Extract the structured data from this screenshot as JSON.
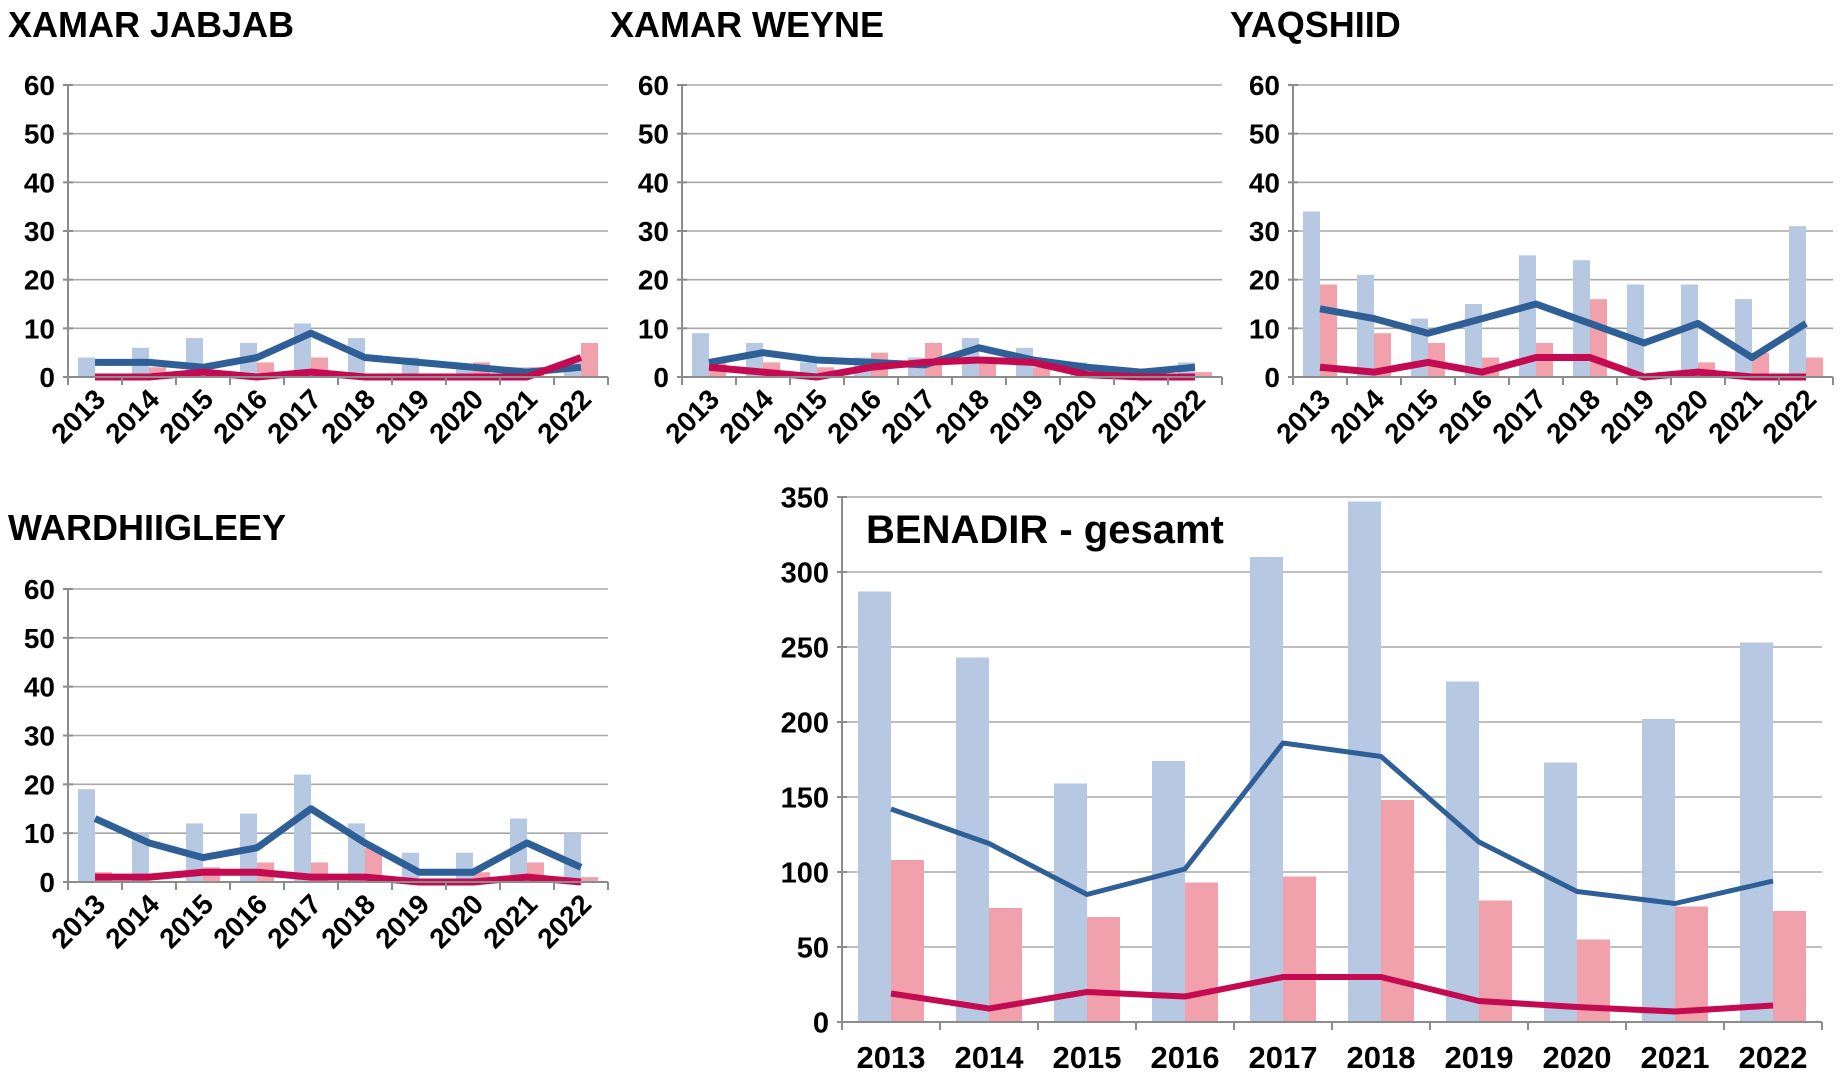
{
  "page": {
    "background": "#ffffff"
  },
  "colors": {
    "bar_blue": "#b6c8e2",
    "bar_pink": "#f0a1ac",
    "line_blue": "#2e5f96",
    "line_red": "#c40a50",
    "gridline": "#a8a8a8",
    "axis": "#8c8c8c",
    "text": "#000000"
  },
  "chart_data": [
    {
      "type": "bar",
      "title": "XAMAR JABJAB",
      "categories": [
        "2013",
        "2014",
        "2015",
        "2016",
        "2017",
        "2018",
        "2019",
        "2020",
        "2021",
        "2022"
      ],
      "ylim": [
        0,
        60
      ],
      "yticks": [
        0,
        10,
        20,
        30,
        40,
        50,
        60
      ],
      "grid": true,
      "legend": "none",
      "x_label_rotation": 45,
      "series": [
        {
          "name": "blue_bars",
          "type": "bar",
          "color": "#b6c8e2",
          "values": [
            4,
            6,
            8,
            7,
            11,
            8,
            4,
            2,
            2,
            3
          ]
        },
        {
          "name": "pink_bars",
          "type": "bar",
          "color": "#f0a1ac",
          "values": [
            0,
            2,
            0,
            3,
            4,
            0,
            0,
            3,
            2,
            7
          ]
        },
        {
          "name": "blue_line",
          "type": "line",
          "color": "#2e5f96",
          "values": [
            3,
            3,
            2,
            4,
            9,
            4,
            3,
            2,
            1,
            2
          ]
        },
        {
          "name": "red_line",
          "type": "line",
          "color": "#c40a50",
          "values": [
            0,
            0,
            1,
            0,
            1,
            0,
            0,
            0,
            0,
            4
          ]
        }
      ]
    },
    {
      "type": "bar",
      "title": "XAMAR WEYNE",
      "categories": [
        "2013",
        "2014",
        "2015",
        "2016",
        "2017",
        "2018",
        "2019",
        "2020",
        "2021",
        "2022"
      ],
      "ylim": [
        0,
        60
      ],
      "yticks": [
        0,
        10,
        20,
        30,
        40,
        50,
        60
      ],
      "grid": true,
      "legend": "none",
      "x_label_rotation": 45,
      "series": [
        {
          "name": "blue_bars",
          "type": "bar",
          "color": "#b6c8e2",
          "values": [
            9,
            7,
            3,
            4,
            4,
            8,
            6,
            3,
            1,
            3
          ]
        },
        {
          "name": "pink_bars",
          "type": "bar",
          "color": "#f0a1ac",
          "values": [
            3,
            3,
            2,
            5,
            7,
            3,
            2,
            2,
            0,
            1
          ]
        },
        {
          "name": "blue_line",
          "type": "line",
          "color": "#2e5f96",
          "values": [
            3,
            5,
            3.5,
            3,
            2.5,
            6,
            3.5,
            2,
            1,
            2
          ]
        },
        {
          "name": "red_line",
          "type": "line",
          "color": "#c40a50",
          "values": [
            2,
            1,
            0,
            2,
            3,
            3.5,
            3,
            0.5,
            0,
            0
          ]
        }
      ]
    },
    {
      "type": "bar",
      "title": "YAQSHIID",
      "categories": [
        "2013",
        "2014",
        "2015",
        "2016",
        "2017",
        "2018",
        "2019",
        "2020",
        "2021",
        "2022"
      ],
      "ylim": [
        0,
        60
      ],
      "yticks": [
        0,
        10,
        20,
        30,
        40,
        50,
        60
      ],
      "grid": true,
      "legend": "none",
      "x_label_rotation": 45,
      "series": [
        {
          "name": "blue_bars",
          "type": "bar",
          "color": "#b6c8e2",
          "values": [
            34,
            21,
            12,
            15,
            25,
            24,
            19,
            19,
            16,
            31
          ]
        },
        {
          "name": "pink_bars",
          "type": "bar",
          "color": "#f0a1ac",
          "values": [
            19,
            9,
            7,
            4,
            7,
            16,
            0,
            3,
            5,
            4
          ]
        },
        {
          "name": "blue_line",
          "type": "line",
          "color": "#2e5f96",
          "values": [
            14,
            12,
            9,
            12,
            15,
            11,
            7,
            11,
            4,
            11
          ]
        },
        {
          "name": "red_line",
          "type": "line",
          "color": "#c40a50",
          "values": [
            2,
            1,
            3,
            1,
            4,
            4,
            0,
            1,
            0,
            0
          ]
        }
      ]
    },
    {
      "type": "bar",
      "title": "WARDHIIGLEEY",
      "categories": [
        "2013",
        "2014",
        "2015",
        "2016",
        "2017",
        "2018",
        "2019",
        "2020",
        "2021",
        "2022"
      ],
      "ylim": [
        0,
        60
      ],
      "yticks": [
        0,
        10,
        20,
        30,
        40,
        50,
        60
      ],
      "grid": true,
      "legend": "none",
      "x_label_rotation": 45,
      "series": [
        {
          "name": "blue_bars",
          "type": "bar",
          "color": "#b6c8e2",
          "values": [
            19,
            10,
            12,
            14,
            22,
            12,
            6,
            6,
            13,
            10
          ]
        },
        {
          "name": "pink_bars",
          "type": "bar",
          "color": "#f0a1ac",
          "values": [
            2,
            0,
            3,
            4,
            4,
            7,
            0,
            2,
            4,
            1
          ]
        },
        {
          "name": "blue_line",
          "type": "line",
          "color": "#2e5f96",
          "values": [
            13,
            8,
            5,
            7,
            15,
            8,
            2,
            2,
            8,
            3
          ]
        },
        {
          "name": "red_line",
          "type": "line",
          "color": "#c40a50",
          "values": [
            1,
            1,
            2,
            2,
            1,
            1,
            0,
            0,
            1,
            0
          ]
        }
      ]
    },
    {
      "type": "bar",
      "title": "BENADIR - gesamt",
      "categories": [
        "2013",
        "2014",
        "2015",
        "2016",
        "2017",
        "2018",
        "2019",
        "2020",
        "2021",
        "2022"
      ],
      "ylim": [
        0,
        350
      ],
      "yticks": [
        0,
        50,
        100,
        150,
        200,
        250,
        300,
        350
      ],
      "grid": true,
      "legend": "none",
      "x_label_rotation": 0,
      "series": [
        {
          "name": "blue_bars",
          "type": "bar",
          "color": "#b6c8e2",
          "values": [
            287,
            243,
            159,
            174,
            310,
            347,
            227,
            173,
            202,
            253
          ]
        },
        {
          "name": "pink_bars",
          "type": "bar",
          "color": "#f0a1ac",
          "values": [
            108,
            76,
            70,
            93,
            97,
            148,
            81,
            55,
            77,
            74
          ]
        },
        {
          "name": "blue_line",
          "type": "line",
          "color": "#2e5f96",
          "values": [
            142,
            119,
            85,
            102,
            186,
            177,
            120,
            87,
            79,
            94
          ]
        },
        {
          "name": "red_line",
          "type": "line",
          "color": "#c40a50",
          "values": [
            19,
            9,
            20,
            17,
            30,
            30,
            14,
            10,
            7,
            11
          ]
        }
      ]
    }
  ]
}
